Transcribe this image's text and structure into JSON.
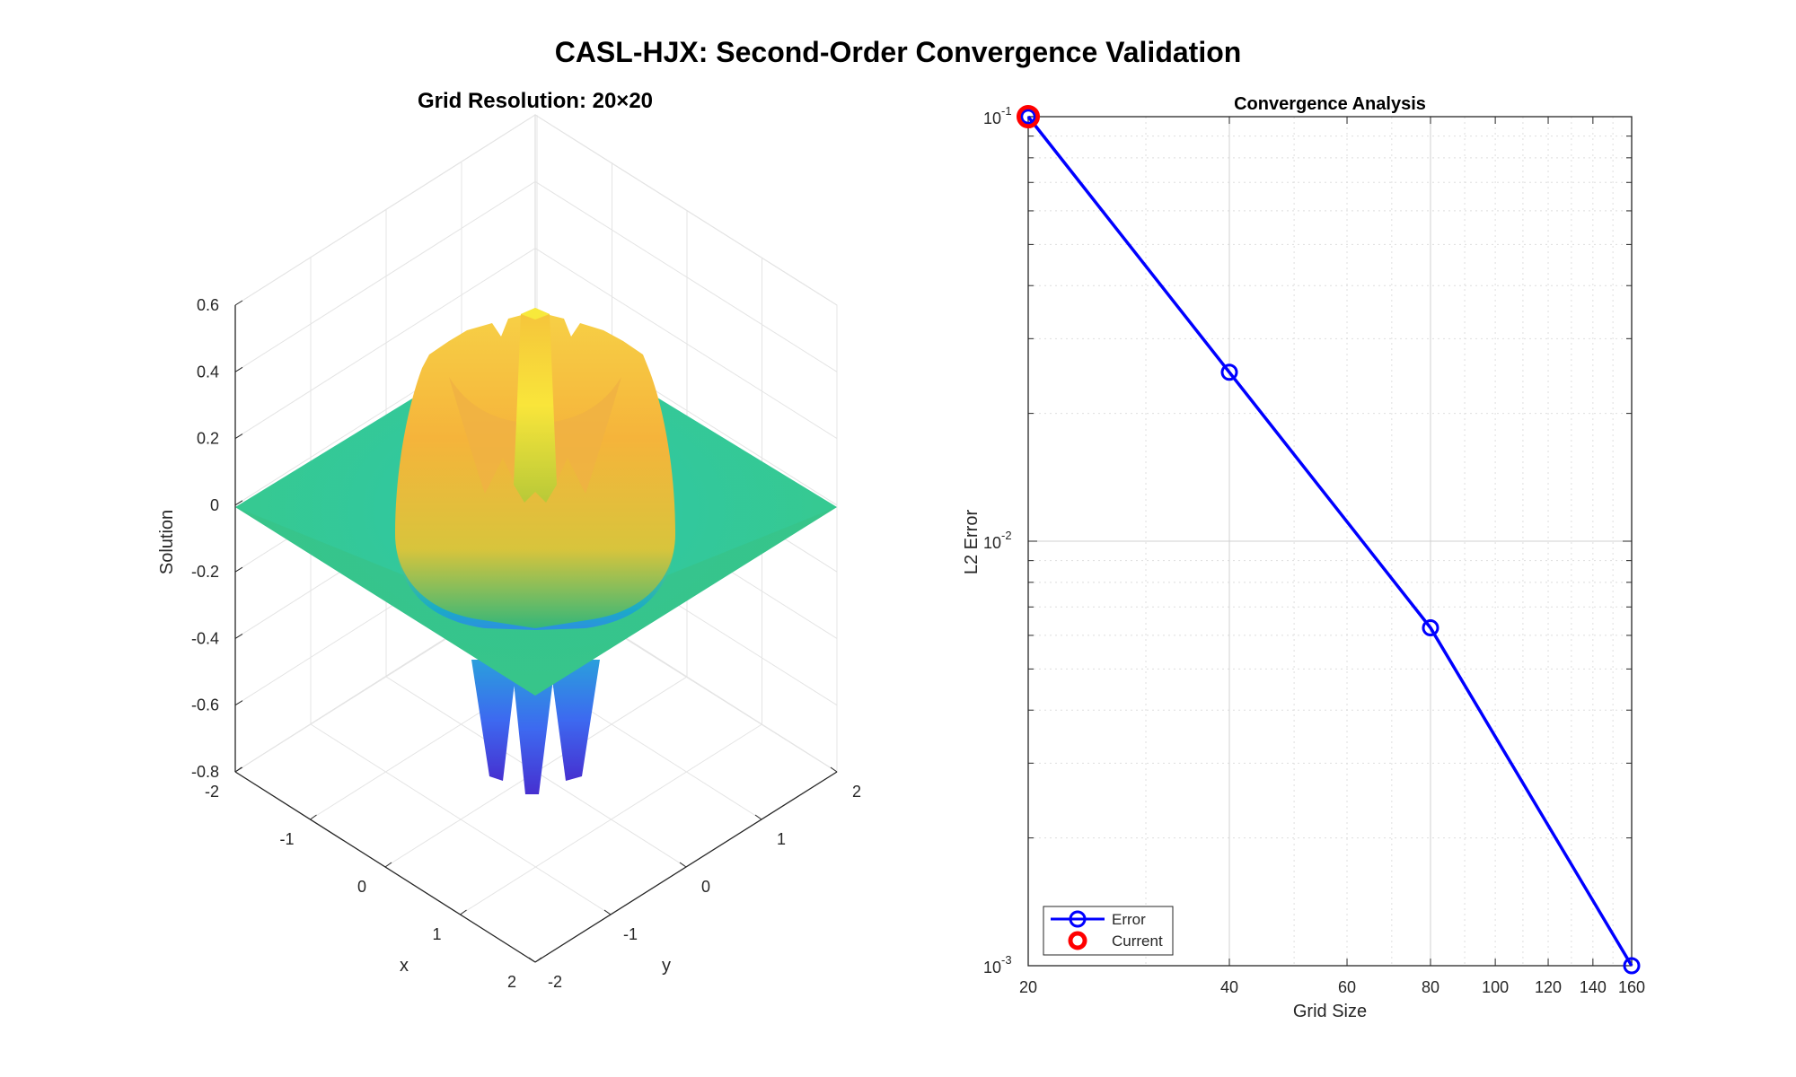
{
  "figure": {
    "title": "CASL-HJX: Second-Order Convergence Validation"
  },
  "chart_data": [
    {
      "type": "surface",
      "title": "Grid Resolution: 20×20",
      "xlabel": "x",
      "ylabel": "y",
      "zlabel": "Solution",
      "xlim": [
        -2,
        2
      ],
      "ylim": [
        -2,
        2
      ],
      "zlim": [
        -0.8,
        0.6
      ],
      "x_ticks": [
        "-2",
        "-1",
        "0",
        "1",
        "2"
      ],
      "y_ticks": [
        "-2",
        "-1",
        "0",
        "1",
        "2"
      ],
      "z_ticks": [
        "-0.8",
        "-0.6",
        "-0.4",
        "-0.2",
        "0",
        "0.2",
        "0.4",
        "0.6"
      ],
      "colormap": "parula",
      "grid": true
    },
    {
      "type": "line",
      "title": "Convergence Analysis",
      "xlabel": "Grid Size",
      "ylabel": "L2 Error",
      "xscale": "log",
      "yscale": "log",
      "xlim": [
        20,
        160
      ],
      "ylim": [
        0.001,
        0.1
      ],
      "x_ticks": [
        "20",
        "40",
        "60",
        "80",
        "100",
        "120",
        "140",
        "160"
      ],
      "y_ticks": [
        {
          "base": "10",
          "exp": "-3",
          "value": 0.001
        },
        {
          "base": "10",
          "exp": "-2",
          "value": 0.01
        },
        {
          "base": "10",
          "exp": "-1",
          "value": 0.1
        }
      ],
      "grid": true,
      "legend_position": "bottom-left",
      "series": [
        {
          "name": "Error",
          "x": [
            20,
            40,
            80,
            160
          ],
          "y": [
            0.1,
            0.025,
            0.00625,
            0.001
          ],
          "color": "#0000ff",
          "marker": "circle"
        },
        {
          "name": "Current",
          "x": [
            20
          ],
          "y": [
            0.1
          ],
          "color": "#ff0000",
          "marker": "circle"
        }
      ]
    }
  ]
}
